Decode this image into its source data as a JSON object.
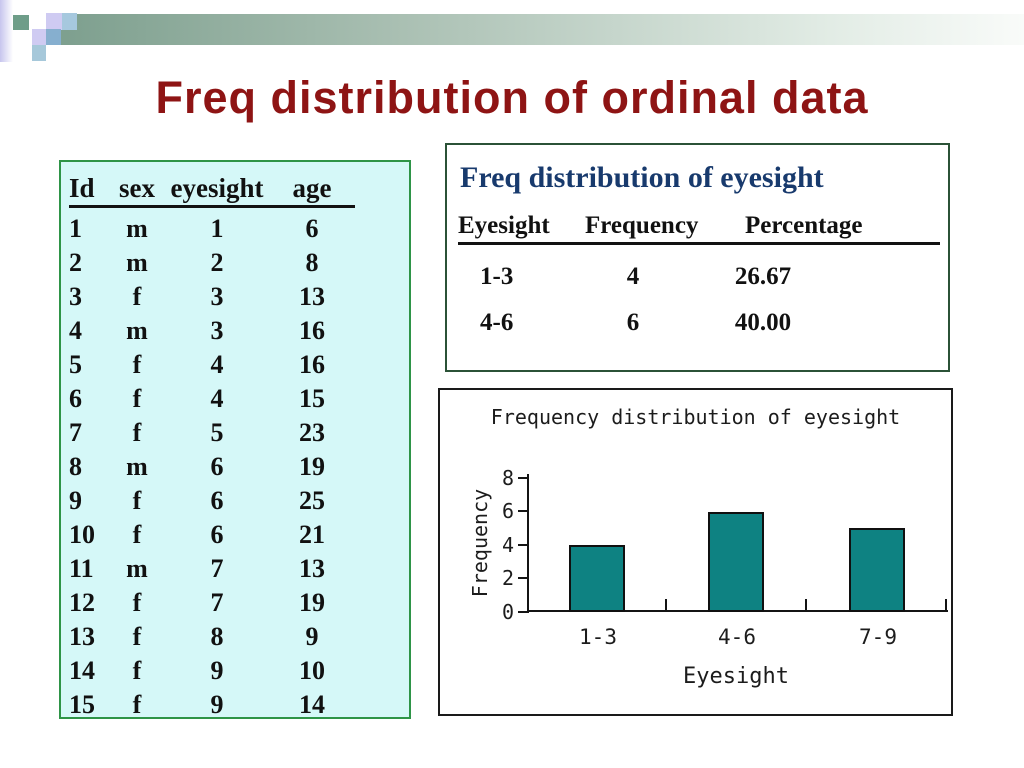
{
  "slide": {
    "title": "Freq distribution of ordinal data",
    "title_color": "#8e1414"
  },
  "data_table": {
    "bg_color": "#d5f8f8",
    "border_color": "#2e9447",
    "headers": [
      "Id",
      "sex",
      "eyesight",
      "age"
    ],
    "rows": [
      [
        "1",
        "m",
        "1",
        "6"
      ],
      [
        "2",
        "m",
        "2",
        "8"
      ],
      [
        "3",
        "f",
        "3",
        "13"
      ],
      [
        "4",
        "m",
        "3",
        "16"
      ],
      [
        "5",
        "f",
        "4",
        "16"
      ],
      [
        "6",
        "f",
        "4",
        "15"
      ],
      [
        "7",
        "f",
        "5",
        "23"
      ],
      [
        "8",
        "m",
        "6",
        "19"
      ],
      [
        "9",
        "f",
        "6",
        "25"
      ],
      [
        "10",
        "f",
        "6",
        "21"
      ],
      [
        "11",
        "m",
        "7",
        "13"
      ],
      [
        "12",
        "f",
        "7",
        "19"
      ],
      [
        "13",
        "f",
        "8",
        "9"
      ],
      [
        "14",
        "f",
        "9",
        "10"
      ],
      [
        "15",
        "f",
        "9",
        "14"
      ]
    ]
  },
  "freq_table": {
    "title": "Freq distribution of eyesight",
    "title_color": "#183a6d",
    "border_color": "#2b5237",
    "headers": [
      "Eyesight",
      "Frequency",
      "Percentage"
    ],
    "rows": [
      [
        "1-3",
        "4",
        "26.67"
      ],
      [
        "4-6",
        "6",
        "40.00"
      ]
    ]
  },
  "chart_data": {
    "type": "bar",
    "title": "Frequency distribution of eyesight",
    "categories": [
      "1-3",
      "4-6",
      "7-9"
    ],
    "values": [
      4,
      6,
      5
    ],
    "xlabel": "Eyesight",
    "ylabel": "Frequency",
    "ylim": [
      0,
      8
    ],
    "yticks": [
      0,
      2,
      4,
      6,
      8
    ],
    "bar_color": "#0e8282",
    "grid": false,
    "legend": "none"
  }
}
